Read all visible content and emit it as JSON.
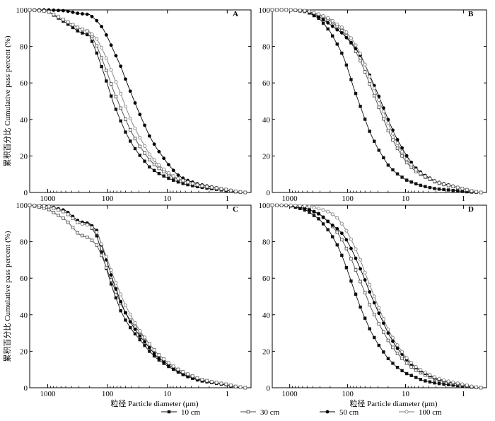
{
  "chart_data": [
    {
      "type": "line",
      "panel_label": "A",
      "ylabel": "累积百分比 Cumulative pass percent (%)",
      "xlabel": "",
      "x_scale": "log-reversed",
      "xlim": [
        2000,
        0.4
      ],
      "ylim": [
        0,
        100
      ],
      "xticks": [
        "1000",
        "100",
        "10",
        "1"
      ],
      "yticks": [
        "0",
        "20",
        "40",
        "60",
        "80",
        "100"
      ],
      "x": [
        2000,
        1000,
        500,
        300,
        200,
        150,
        120,
        100,
        80,
        60,
        50,
        40,
        30,
        20,
        15,
        10,
        7,
        5,
        3,
        2,
        1,
        0.7,
        0.5
      ],
      "series": [
        {
          "name": "10 cm",
          "marker": "filled-square",
          "values": [
            100,
            99.2,
            93,
            88,
            86,
            76,
            67,
            59,
            49,
            39,
            33,
            27,
            21,
            14,
            11,
            8,
            6,
            4.5,
            3,
            2.2,
            1,
            0.3,
            0
          ]
        },
        {
          "name": "30 cm",
          "marker": "open-square",
          "values": [
            100,
            99.3,
            94,
            90,
            88,
            80,
            72,
            65,
            56,
            46,
            40,
            33,
            26,
            18,
            14,
            10,
            7.5,
            6,
            4,
            3,
            1.5,
            0.5,
            0
          ]
        },
        {
          "name": "50 cm",
          "marker": "filled-circle",
          "values": [
            100,
            100,
            99.5,
            98,
            97.5,
            94,
            90,
            85,
            78,
            69,
            62,
            54,
            44,
            31,
            24,
            16,
            10,
            7,
            4.5,
            3.3,
            1.5,
            0.5,
            0
          ]
        },
        {
          "name": "100 cm",
          "marker": "open-circle",
          "values": [
            100,
            99.3,
            94,
            90,
            88,
            84,
            78,
            72,
            64,
            54,
            47,
            39,
            31,
            21,
            16,
            11,
            8,
            6,
            4,
            3,
            1.5,
            0.5,
            0
          ]
        }
      ]
    },
    {
      "type": "line",
      "panel_label": "B",
      "ylabel": "",
      "xlabel": "",
      "x_scale": "log-reversed",
      "xlim": [
        2000,
        0.4
      ],
      "ylim": [
        0,
        100
      ],
      "xticks": [
        "1000",
        "100",
        "10",
        "1"
      ],
      "yticks": [
        "0",
        "20",
        "40",
        "60",
        "80",
        "100"
      ],
      "x": [
        2000,
        1000,
        500,
        300,
        200,
        150,
        120,
        100,
        80,
        60,
        50,
        40,
        30,
        20,
        15,
        10,
        7,
        5,
        3,
        2,
        1,
        0.7,
        0.5
      ],
      "series": [
        {
          "name": "10 cm",
          "marker": "filled-square",
          "values": [
            100,
            100,
            99,
            95,
            88,
            81,
            75,
            68,
            58,
            47,
            40,
            32,
            24,
            15,
            11,
            7,
            5,
            3.5,
            2,
            1.5,
            0.5,
            0.2,
            0
          ]
        },
        {
          "name": "30 cm",
          "marker": "open-square",
          "values": [
            100,
            100,
            99.4,
            97,
            94,
            91,
            88,
            85,
            80,
            72,
            66,
            58,
            48,
            34,
            26,
            17,
            12,
            9,
            5.5,
            4,
            2,
            0.7,
            0
          ]
        },
        {
          "name": "50 cm",
          "marker": "filled-circle",
          "values": [
            100,
            100,
            99.4,
            96,
            92,
            89,
            87,
            84,
            81,
            75,
            70,
            63,
            54,
            40,
            31,
            21,
            14,
            10,
            6,
            4.5,
            2,
            0.7,
            0
          ]
        },
        {
          "name": "100 cm",
          "marker": "open-circle",
          "values": [
            100,
            100,
            99.5,
            97.5,
            95,
            92,
            90,
            87,
            83,
            76,
            70,
            62,
            52,
            38,
            29,
            19,
            13,
            9.5,
            5.8,
            4.2,
            2,
            0.7,
            0
          ]
        }
      ]
    },
    {
      "type": "line",
      "panel_label": "C",
      "ylabel": "累积百分比 Cumulative pass percent (%)",
      "xlabel": "粒径 Particle diameter (μm)",
      "x_scale": "log-reversed",
      "xlim": [
        2000,
        0.4
      ],
      "ylim": [
        0,
        100
      ],
      "xticks": [
        "1000",
        "100",
        "10",
        "1"
      ],
      "yticks": [
        "0",
        "20",
        "40",
        "60",
        "80",
        "100"
      ],
      "x": [
        2000,
        1000,
        500,
        300,
        200,
        150,
        120,
        100,
        80,
        60,
        50,
        40,
        30,
        20,
        15,
        10,
        7,
        5,
        3,
        2,
        1,
        0.7,
        0.5
      ],
      "series": [
        {
          "name": "10 cm",
          "marker": "filled-square",
          "values": [
            100,
            99.5,
            96,
            90,
            89.5,
            83,
            72,
            63,
            53,
            42,
            37,
            32,
            27,
            20,
            16,
            12,
            9,
            6.5,
            4,
            3,
            1.5,
            0.5,
            0
          ]
        },
        {
          "name": "30 cm",
          "marker": "open-square",
          "values": [
            100,
            98,
            92,
            84,
            82,
            78,
            71,
            64,
            56,
            46,
            41,
            36,
            31,
            24,
            19,
            14,
            10.5,
            8,
            5,
            3.5,
            1.8,
            0.6,
            0
          ]
        },
        {
          "name": "50 cm",
          "marker": "filled-circle",
          "values": [
            100,
            99.6,
            97,
            91,
            90,
            86,
            76,
            68,
            58,
            47,
            41,
            35,
            29,
            22,
            17,
            13,
            9.5,
            7,
            4.5,
            3.2,
            1.6,
            0.5,
            0
          ]
        },
        {
          "name": "100 cm",
          "marker": "open-circle",
          "values": [
            100,
            99.5,
            96,
            90,
            89,
            85,
            77,
            70,
            61,
            51,
            45,
            39,
            32,
            24,
            19,
            14,
            10.5,
            8,
            5,
            3.5,
            1.8,
            0.6,
            0
          ]
        }
      ]
    },
    {
      "type": "line",
      "panel_label": "D",
      "ylabel": "",
      "xlabel": "粒径 Particle diameter (μm)",
      "x_scale": "log-reversed",
      "xlim": [
        2000,
        0.4
      ],
      "ylim": [
        0,
        100
      ],
      "xticks": [
        "1000",
        "100",
        "10",
        "1"
      ],
      "yticks": [
        "0",
        "20",
        "40",
        "60",
        "80",
        "100"
      ],
      "x": [
        2000,
        1000,
        500,
        300,
        200,
        150,
        120,
        100,
        80,
        60,
        50,
        40,
        30,
        20,
        15,
        10,
        7,
        5,
        3,
        2,
        1,
        0.7,
        0.5
      ],
      "series": [
        {
          "name": "10 cm",
          "marker": "filled-square",
          "values": [
            100,
            99.8,
            97,
            92,
            85,
            78,
            71,
            64,
            55,
            44,
            38,
            31,
            24,
            16,
            12,
            8,
            6,
            4,
            2.5,
            1.8,
            0.8,
            0.3,
            0
          ]
        },
        {
          "name": "30 cm",
          "marker": "open-square",
          "values": [
            100,
            99.8,
            98,
            95,
            90,
            85,
            80,
            75,
            68,
            58,
            52,
            44,
            36,
            26,
            20,
            14,
            10,
            7.5,
            4.5,
            3.2,
            1.5,
            0.5,
            0
          ]
        },
        {
          "name": "50 cm",
          "marker": "filled-circle",
          "values": [
            100,
            99.8,
            98,
            95,
            90,
            87,
            84,
            80,
            74,
            65,
            59,
            51,
            42,
            30,
            23,
            16,
            11.5,
            8.5,
            5,
            3.6,
            1.7,
            0.6,
            0
          ]
        },
        {
          "name": "100 cm",
          "marker": "open-circle",
          "values": [
            100,
            100,
            99.5,
            98,
            96,
            93,
            89,
            85,
            79,
            70,
            63,
            55,
            45,
            32,
            25,
            17,
            12,
            9,
            5.5,
            3.8,
            1.8,
            0.6,
            0
          ]
        }
      ]
    }
  ],
  "legend": {
    "placement": "bottom-center",
    "items": [
      {
        "label": "10 cm",
        "marker": "filled-square"
      },
      {
        "label": "30 cm",
        "marker": "open-square"
      },
      {
        "label": "50 cm",
        "marker": "filled-circle"
      },
      {
        "label": "100 cm",
        "marker": "open-circle"
      }
    ]
  },
  "colors": {
    "10 cm": "#111111",
    "30 cm": "#4a4a4a",
    "50 cm": "#000000",
    "100 cm": "#7a7a7a"
  }
}
